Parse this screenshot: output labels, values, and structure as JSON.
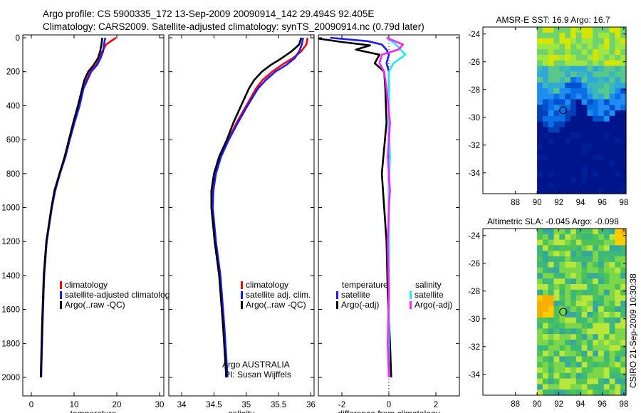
{
  "title_line1": "Argo profile: CS 5900335_172 13-Sep-2009 20090914_142 29.494S 92.405E",
  "title_line2": "Climatology: CARS2009. Satellite-adjusted climatology: synTS_20090914.nc (0.79d later)",
  "side_stamp": "CSIRO 21-Sep-2009 10:30:38",
  "colors": {
    "red": "#ff0000",
    "blue": "#1a1aff",
    "black": "#000000",
    "cyan": "#22e8f0",
    "magenta": "#ff22ff"
  },
  "chart_data": [
    {
      "type": "line",
      "name": "temperature",
      "xlabel": "temperature",
      "xlim": [
        -2,
        31
      ],
      "ylim": [
        2050,
        0
      ],
      "xticks": [
        "0",
        "10",
        "20",
        "30"
      ],
      "xtick_values": [
        0,
        10,
        20,
        30
      ],
      "yticks": [
        "0",
        "200",
        "400",
        "600",
        "800",
        "1000",
        "1200",
        "1400",
        "1600",
        "1800",
        "2000"
      ],
      "ytick_values": [
        0,
        200,
        400,
        600,
        800,
        1000,
        1200,
        1400,
        1600,
        1800,
        2000
      ],
      "legend": [
        "climatology",
        "satellite-adjusted climatolog",
        "Argo(..raw -QC)"
      ],
      "series": [
        {
          "name": "climatology",
          "color": "red",
          "x": [
            19.8,
            17.5,
            16.6,
            16.0,
            15.2,
            13.8,
            12.9,
            12.1,
            11.2,
            10.0,
            8.9,
            7.9,
            6.6,
            5.5,
            4.8,
            3.6,
            3.0,
            2.6,
            2.3
          ],
          "y": [
            0,
            40,
            80,
            120,
            160,
            200,
            250,
            300,
            400,
            500,
            600,
            700,
            800,
            900,
            1000,
            1200,
            1400,
            1700,
            2000
          ]
        },
        {
          "name": "satellite-adjusted climatology",
          "color": "blue",
          "x": [
            17.3,
            17.0,
            16.8,
            16.2,
            15.4,
            14.0,
            13.1,
            12.2,
            11.3,
            10.1,
            9.0,
            8.0,
            6.7,
            5.6,
            4.8,
            3.6,
            3.0,
            2.6,
            2.3
          ],
          "y": [
            0,
            40,
            80,
            120,
            160,
            200,
            250,
            300,
            400,
            500,
            600,
            700,
            800,
            900,
            1000,
            1200,
            1400,
            1700,
            2000
          ]
        },
        {
          "name": "Argo",
          "color": "black",
          "x": [
            16.6,
            16.4,
            16.1,
            15.6,
            14.6,
            13.3,
            12.4,
            11.9,
            10.9,
            9.8,
            8.8,
            7.8,
            6.6,
            5.4,
            4.7,
            3.5,
            2.9,
            2.5,
            2.2
          ],
          "y": [
            0,
            40,
            80,
            120,
            160,
            200,
            250,
            300,
            400,
            500,
            600,
            700,
            800,
            900,
            1000,
            1200,
            1400,
            1700,
            2000
          ]
        }
      ]
    },
    {
      "type": "line",
      "name": "salinity",
      "xlabel": "salinity",
      "xlim": [
        33.8,
        36.05
      ],
      "ylim": [
        2050,
        0
      ],
      "xticks": [
        "34",
        "34.5",
        "35",
        "35.5",
        "36"
      ],
      "xtick_values": [
        34,
        34.5,
        35,
        35.5,
        36
      ],
      "legend": [
        "climatology",
        "satellite adj. clim.",
        "Argo(..raw -QC)"
      ],
      "annotation": [
        "Argo AUSTRALIA",
        "PI: Susan Wijffels"
      ],
      "series": [
        {
          "name": "climatology",
          "color": "red",
          "x": [
            35.95,
            35.93,
            35.85,
            35.72,
            35.55,
            35.4,
            35.25,
            35.15,
            35.0,
            34.85,
            34.72,
            34.6,
            34.52,
            34.48,
            34.47,
            34.52,
            34.59,
            34.65,
            34.7
          ],
          "y": [
            0,
            40,
            80,
            120,
            160,
            200,
            250,
            300,
            400,
            500,
            600,
            700,
            800,
            900,
            1000,
            1200,
            1400,
            1700,
            2000
          ]
        },
        {
          "name": "satellite adj. clim.",
          "color": "blue",
          "x": [
            35.88,
            35.86,
            35.82,
            35.75,
            35.62,
            35.45,
            35.3,
            35.18,
            35.02,
            34.87,
            34.73,
            34.61,
            34.53,
            34.49,
            34.48,
            34.53,
            34.6,
            34.66,
            34.71
          ],
          "y": [
            0,
            40,
            80,
            120,
            160,
            200,
            250,
            300,
            400,
            500,
            600,
            700,
            800,
            900,
            1000,
            1200,
            1400,
            1700,
            2000
          ]
        },
        {
          "name": "Argo",
          "color": "black",
          "x": [
            35.85,
            35.82,
            35.7,
            35.55,
            35.38,
            35.24,
            35.12,
            35.04,
            34.92,
            34.8,
            34.7,
            34.58,
            34.5,
            34.46,
            34.46,
            34.51,
            34.58,
            34.64,
            34.69
          ],
          "y": [
            0,
            40,
            80,
            120,
            160,
            200,
            250,
            300,
            400,
            500,
            600,
            700,
            800,
            900,
            1000,
            1200,
            1400,
            1700,
            2000
          ]
        }
      ]
    },
    {
      "type": "line",
      "name": "difference",
      "xlabel": "difference from climatology",
      "xlim": [
        -3,
        3
      ],
      "ylim": [
        2050,
        0
      ],
      "xticks": [
        "-2",
        "0",
        "2"
      ],
      "xtick_values": [
        -2,
        0,
        2
      ],
      "legend_temperature_title": "temperature",
      "legend_salinity_title": "salinity",
      "legend_temperature": [
        "satellite",
        "Argo(-adj)"
      ],
      "legend_salinity": [
        "satellite",
        "Argo(-adj)"
      ],
      "series": [
        {
          "name": "temperature satellite",
          "color": "blue",
          "x": [
            -2.5,
            -0.9,
            -0.3,
            -0.1,
            0.0,
            -0.1,
            0.0,
            0.0,
            0.0,
            0.0,
            0.0,
            0.0,
            0.0,
            0.0,
            0.0
          ],
          "y": [
            0,
            20,
            40,
            70,
            100,
            150,
            200,
            300,
            500,
            800,
            1000,
            1200,
            1500,
            1800,
            2000
          ]
        },
        {
          "name": "temperature Argo",
          "color": "black",
          "x": [
            -3.0,
            -2.0,
            -0.8,
            -1.4,
            -0.4,
            -0.6,
            -0.2,
            -0.15,
            -0.1,
            -0.3,
            -0.2,
            -0.1,
            -0.05,
            0.05,
            0.1
          ],
          "y": [
            5,
            25,
            45,
            70,
            100,
            150,
            200,
            300,
            500,
            800,
            1000,
            1200,
            1500,
            1800,
            2000
          ]
        },
        {
          "name": "salinity satellite",
          "color": "cyan",
          "x": [
            -0.1,
            0.3,
            0.5,
            0.7,
            0.2,
            0.0,
            0.0,
            0.0,
            0.05,
            0.0,
            0.0,
            0.0,
            0.0,
            0.0,
            0.0
          ],
          "y": [
            0,
            40,
            70,
            100,
            150,
            200,
            300,
            500,
            700,
            900,
            1000,
            1200,
            1500,
            1800,
            2000
          ]
        },
        {
          "name": "salinity Argo",
          "color": "magenta",
          "x": [
            -0.1,
            0.6,
            0.4,
            -0.3,
            -0.4,
            -0.2,
            -0.1,
            0.05,
            -0.05,
            0.05,
            0.0,
            -0.05,
            0.0,
            -0.05,
            0.0
          ],
          "y": [
            0,
            40,
            70,
            100,
            150,
            200,
            300,
            500,
            700,
            900,
            1000,
            1200,
            1500,
            1800,
            2000
          ]
        }
      ]
    },
    {
      "type": "heatmap",
      "name": "sst_map",
      "title": "AMSR-E SST: 16.9 Argo: 16.7",
      "xlim": [
        85,
        98.2
      ],
      "ylim": [
        -35.5,
        -23.5
      ],
      "xticks": [
        "88",
        "90",
        "92",
        "94",
        "96",
        "98"
      ],
      "xtick_values": [
        88,
        90,
        92,
        94,
        96,
        98
      ],
      "yticks": [
        "-24",
        "-26",
        "-28",
        "-30",
        "-32",
        "-34"
      ],
      "ytick_values": [
        -24,
        -26,
        -28,
        -30,
        -32,
        -34
      ],
      "data_lon_range": [
        90,
        98.2
      ],
      "float_position": {
        "lon": 92.405,
        "lat": -29.494
      }
    },
    {
      "type": "heatmap",
      "name": "sla_map",
      "title": "Altimetric SLA: -0.045 Argo: -0.098",
      "xlim": [
        85,
        98.2
      ],
      "ylim": [
        -35.5,
        -23.5
      ],
      "xticks": [
        "88",
        "90",
        "92",
        "94",
        "96",
        "98"
      ],
      "xtick_values": [
        88,
        90,
        92,
        94,
        96,
        98
      ],
      "yticks": [
        "-24",
        "-26",
        "-28",
        "-30",
        "-32",
        "-34"
      ],
      "ytick_values": [
        -24,
        -26,
        -28,
        -30,
        -32,
        -34
      ],
      "data_lon_range": [
        90,
        98.2
      ],
      "float_position": {
        "lon": 92.405,
        "lat": -29.494
      }
    }
  ]
}
